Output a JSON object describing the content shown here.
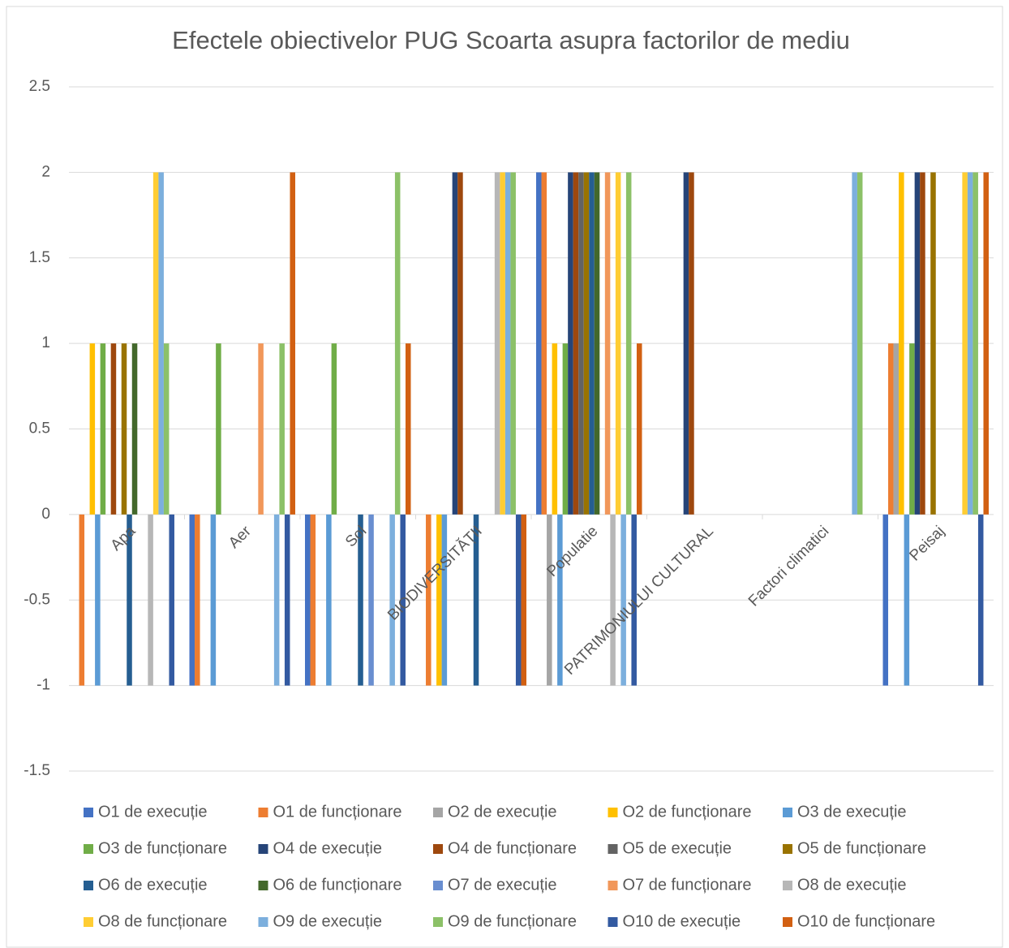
{
  "chart_data": {
    "type": "bar",
    "title": "Efectele obiectivelor PUG Scoarta asupra factorilor de mediu",
    "categories": [
      "Apa",
      "Aer",
      "Sol",
      "BIODIVERSITĂȚII",
      "Populatie",
      "PATRIMONIULUI CULTURAL",
      "Factori climatici",
      "Peisaj"
    ],
    "ylim": [
      -1.5,
      2.5
    ],
    "yticks": [
      -1.5,
      -1,
      -0.5,
      0,
      0.5,
      1,
      1.5,
      2,
      2.5
    ],
    "grid": true,
    "legend": "bottom",
    "series": [
      {
        "name": "O1 de execuție",
        "color": "#4472C4",
        "values": [
          0,
          -1,
          -1,
          0,
          2,
          0,
          0,
          -1
        ]
      },
      {
        "name": "O1 de funcționare",
        "color": "#ED7D31",
        "values": [
          -1,
          -1,
          -1,
          -1,
          2,
          0,
          0,
          1
        ]
      },
      {
        "name": "O2 de execuție",
        "color": "#A5A5A5",
        "values": [
          0,
          0,
          0,
          0,
          -1,
          0,
          0,
          1
        ]
      },
      {
        "name": "O2 de funcționare",
        "color": "#FFC000",
        "values": [
          1,
          0,
          0,
          -1,
          1,
          0,
          0,
          2
        ]
      },
      {
        "name": "O3 de execuție",
        "color": "#5B9BD5",
        "values": [
          -1,
          -1,
          -1,
          -1,
          -1,
          0,
          0,
          -1
        ]
      },
      {
        "name": "O3 de funcționare",
        "color": "#70AD47",
        "values": [
          1,
          1,
          1,
          0,
          1,
          0,
          0,
          1
        ]
      },
      {
        "name": "O4 de execuție",
        "color": "#264478",
        "values": [
          0,
          0,
          0,
          2,
          2,
          2,
          0,
          2
        ]
      },
      {
        "name": "O4 de funcționare",
        "color": "#9E480E",
        "values": [
          1,
          0,
          0,
          2,
          2,
          2,
          0,
          2
        ]
      },
      {
        "name": "O5 de execuție",
        "color": "#636363",
        "values": [
          0,
          0,
          0,
          0,
          2,
          0,
          0,
          0
        ]
      },
      {
        "name": "O5 de funcționare",
        "color": "#997300",
        "values": [
          1,
          0,
          0,
          0,
          2,
          0,
          0,
          2
        ]
      },
      {
        "name": "O6 de execuție",
        "color": "#255E91",
        "values": [
          -1,
          0,
          -1,
          -1,
          2,
          0,
          0,
          0
        ]
      },
      {
        "name": "O6 de funcționare",
        "color": "#43682B",
        "values": [
          1,
          0,
          0,
          0,
          2,
          0,
          0,
          0
        ]
      },
      {
        "name": "O7 de execuție",
        "color": "#698ED0",
        "values": [
          0,
          0,
          -1,
          0,
          0,
          0,
          0,
          0
        ]
      },
      {
        "name": "O7 de funcționare",
        "color": "#F1975A",
        "values": [
          0,
          1,
          0,
          0,
          2,
          0,
          0,
          0
        ]
      },
      {
        "name": "O8 de execuție",
        "color": "#B7B7B7",
        "values": [
          -1,
          0,
          0,
          2,
          -1,
          0,
          0,
          0
        ]
      },
      {
        "name": "O8 de funcționare",
        "color": "#FFCD33",
        "values": [
          2,
          0,
          0,
          2,
          2,
          0,
          0,
          2
        ]
      },
      {
        "name": "O9 de execuție",
        "color": "#7CAFDD",
        "values": [
          2,
          -1,
          -1,
          2,
          -1,
          0,
          2,
          2
        ]
      },
      {
        "name": "O9 de funcționare",
        "color": "#8CC168",
        "values": [
          1,
          1,
          2,
          2,
          2,
          0,
          2,
          2
        ]
      },
      {
        "name": "O10 de execuție",
        "color": "#335AA1",
        "values": [
          -1,
          -1,
          -1,
          -1,
          -1,
          0,
          0,
          -1
        ]
      },
      {
        "name": "O10 de funcționare",
        "color": "#D26012",
        "values": [
          0,
          2,
          1,
          -1,
          1,
          0,
          0,
          2
        ]
      }
    ]
  }
}
